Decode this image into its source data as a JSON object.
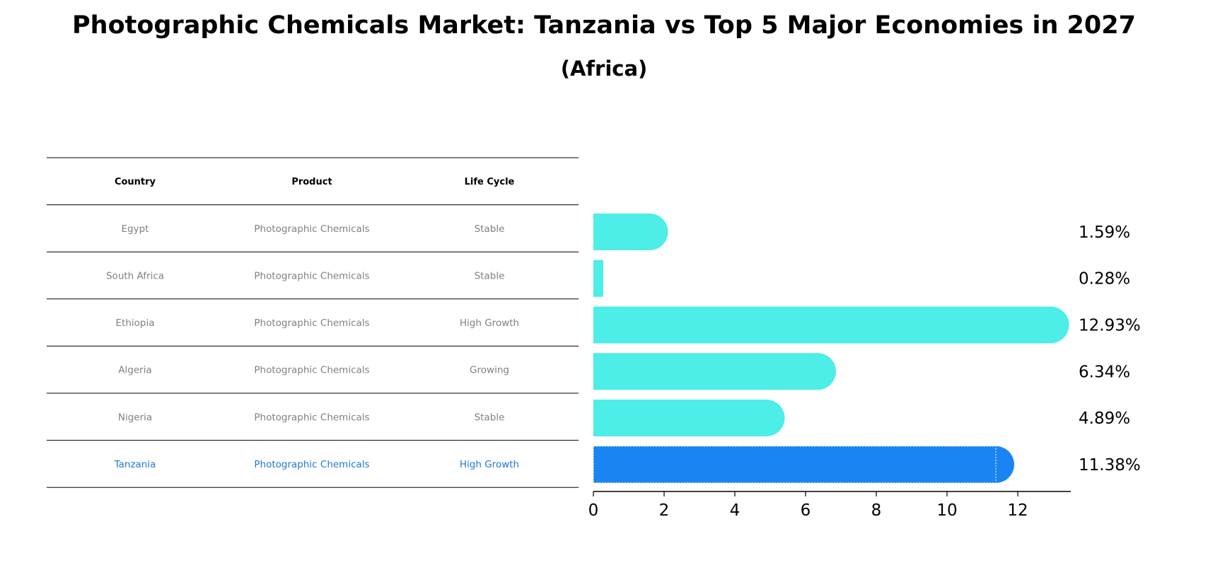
{
  "title": "Photographic Chemicals Market: Tanzania vs Top 5 Major Economies in 2027",
  "subtitle": "(Africa)",
  "colors": {
    "bar": "#4dede8",
    "highlight_bar": "#1a85f2",
    "highlight_text": "#1f78d1",
    "muted_text": "#808080"
  },
  "table": {
    "headers": [
      "Country",
      "Product",
      "Life Cycle"
    ],
    "rows": [
      {
        "country": "Egypt",
        "product": "Photographic Chemicals",
        "life_cycle": "Stable"
      },
      {
        "country": "South Africa",
        "product": "Photographic Chemicals",
        "life_cycle": "Stable"
      },
      {
        "country": "Ethiopia",
        "product": "Photographic Chemicals",
        "life_cycle": "High Growth"
      },
      {
        "country": "Algeria",
        "product": "Photographic Chemicals",
        "life_cycle": "Growing"
      },
      {
        "country": "Nigeria",
        "product": "Photographic Chemicals",
        "life_cycle": "Stable"
      },
      {
        "country": "Tanzania",
        "product": "Photographic Chemicals",
        "life_cycle": "High Growth"
      }
    ],
    "highlight": "Tanzania"
  },
  "chart_data": {
    "type": "bar",
    "orientation": "horizontal",
    "title": "Photographic Chemicals Market: Tanzania vs Top 5 Major Economies in 2027",
    "subtitle": "(Africa)",
    "categories": [
      "Egypt",
      "South Africa",
      "Ethiopia",
      "Algeria",
      "Nigeria",
      "Tanzania"
    ],
    "values": [
      1.59,
      0.28,
      12.93,
      6.34,
      4.89,
      11.38
    ],
    "labels": [
      "1.59%",
      "0.28%",
      "12.93%",
      "6.34%",
      "4.89%",
      "11.38%"
    ],
    "highlight": "Tanzania",
    "xlim": [
      0,
      13.5
    ],
    "xticks": [
      "0",
      "2",
      "4",
      "6",
      "8",
      "10",
      "12"
    ],
    "xlabel": "",
    "ylabel": "",
    "grid": false
  }
}
